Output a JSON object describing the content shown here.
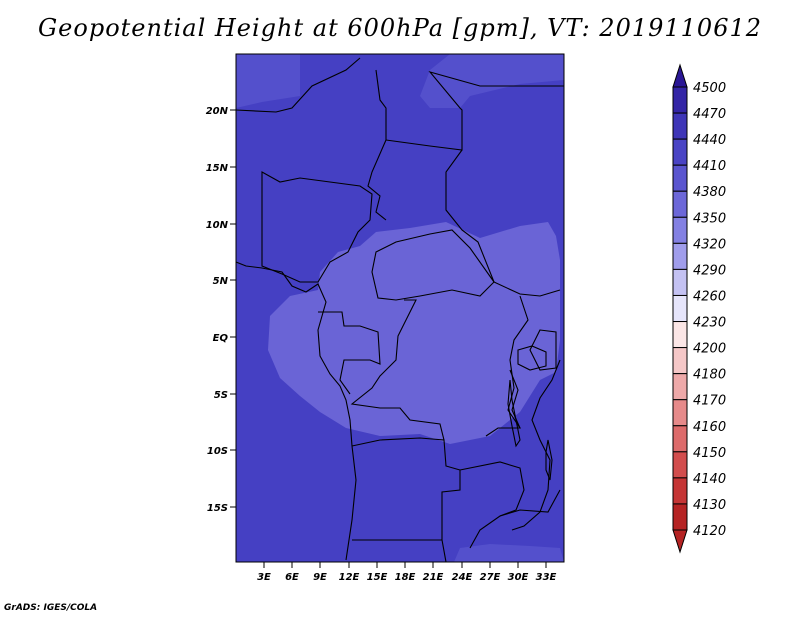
{
  "title": "Geopotential Height at 600hPa [gpm], VT: 2019110612",
  "credit": "GrADS: IGES/COLA",
  "map": {
    "lat_ticks": [
      "20N",
      "15N",
      "10N",
      "5N",
      "EQ",
      "5S",
      "10S",
      "15S"
    ],
    "lon_ticks": [
      "3E",
      "6E",
      "9E",
      "12E",
      "15E",
      "18E",
      "21E",
      "24E",
      "27E",
      "30E",
      "33E"
    ]
  },
  "colorbar": {
    "levels": [
      "4500",
      "4470",
      "4440",
      "4410",
      "4380",
      "4350",
      "4320",
      "4290",
      "4260",
      "4230",
      "4200",
      "4180",
      "4170",
      "4160",
      "4150",
      "4140",
      "4130",
      "4120"
    ],
    "colors": [
      "#2a1795",
      "#3325a6",
      "#3e35b7",
      "#4a44c5",
      "#5a55cf",
      "#6c67d8",
      "#8380e2",
      "#a09deb",
      "#c4c2f3",
      "#e6e5fb",
      "#fbe6e6",
      "#f5c7c7",
      "#eea9a9",
      "#e68a8a",
      "#dd6b6b",
      "#d24d4d",
      "#c53535",
      "#b52323"
    ]
  }
}
